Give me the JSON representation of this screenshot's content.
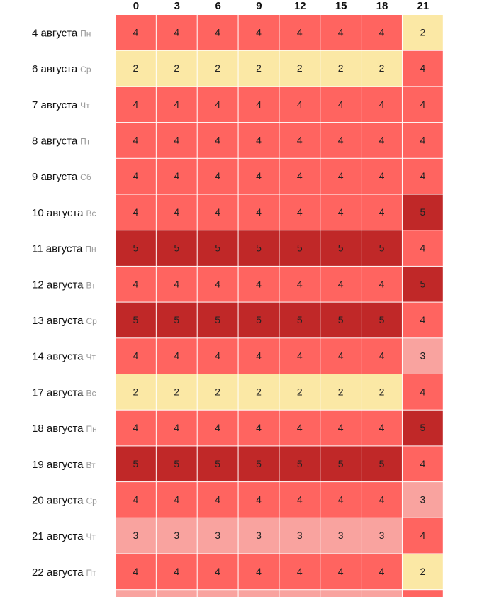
{
  "chart_data": {
    "type": "heatmap",
    "columns": [
      "0",
      "3",
      "6",
      "9",
      "12",
      "15",
      "18",
      "21"
    ],
    "rows": [
      {
        "date": "4 августа",
        "day": "Пн",
        "values": [
          4,
          4,
          4,
          4,
          4,
          4,
          4,
          2
        ]
      },
      {
        "date": "6 августа",
        "day": "Ср",
        "values": [
          2,
          2,
          2,
          2,
          2,
          2,
          2,
          4
        ]
      },
      {
        "date": "7 августа",
        "day": "Чт",
        "values": [
          4,
          4,
          4,
          4,
          4,
          4,
          4,
          4
        ]
      },
      {
        "date": "8 августа",
        "day": "Пт",
        "values": [
          4,
          4,
          4,
          4,
          4,
          4,
          4,
          4
        ]
      },
      {
        "date": "9 августа",
        "day": "Сб",
        "values": [
          4,
          4,
          4,
          4,
          4,
          4,
          4,
          4
        ]
      },
      {
        "date": "10 августа",
        "day": "Вс",
        "values": [
          4,
          4,
          4,
          4,
          4,
          4,
          4,
          5
        ]
      },
      {
        "date": "11 августа",
        "day": "Пн",
        "values": [
          5,
          5,
          5,
          5,
          5,
          5,
          5,
          4
        ]
      },
      {
        "date": "12 августа",
        "day": "Вт",
        "values": [
          4,
          4,
          4,
          4,
          4,
          4,
          4,
          5
        ]
      },
      {
        "date": "13 августа",
        "day": "Ср",
        "values": [
          5,
          5,
          5,
          5,
          5,
          5,
          5,
          4
        ]
      },
      {
        "date": "14 августа",
        "day": "Чт",
        "values": [
          4,
          4,
          4,
          4,
          4,
          4,
          4,
          3
        ]
      },
      {
        "date": "17 августа",
        "day": "Вс",
        "values": [
          2,
          2,
          2,
          2,
          2,
          2,
          2,
          4
        ]
      },
      {
        "date": "18 августа",
        "day": "Пн",
        "values": [
          4,
          4,
          4,
          4,
          4,
          4,
          4,
          5
        ]
      },
      {
        "date": "19 августа",
        "day": "Вт",
        "values": [
          5,
          5,
          5,
          5,
          5,
          5,
          5,
          4
        ]
      },
      {
        "date": "20 августа",
        "day": "Ср",
        "values": [
          4,
          4,
          4,
          4,
          4,
          4,
          4,
          3
        ]
      },
      {
        "date": "21 августа",
        "day": "Чт",
        "values": [
          3,
          3,
          3,
          3,
          3,
          3,
          3,
          4
        ]
      },
      {
        "date": "22 августа",
        "day": "Пт",
        "values": [
          4,
          4,
          4,
          4,
          4,
          4,
          4,
          2
        ]
      }
    ],
    "partial_next_row_colors": [
      "#f9a39f",
      "#f9a39f",
      "#f9a39f",
      "#f9a39f",
      "#f9a39f",
      "#f9a39f",
      "#f9a39f",
      "#ff6460"
    ],
    "colors": {
      "2": "#fbe8a5",
      "3": "#f9a39f",
      "4": "#ff6460",
      "5": "#c02828"
    }
  }
}
